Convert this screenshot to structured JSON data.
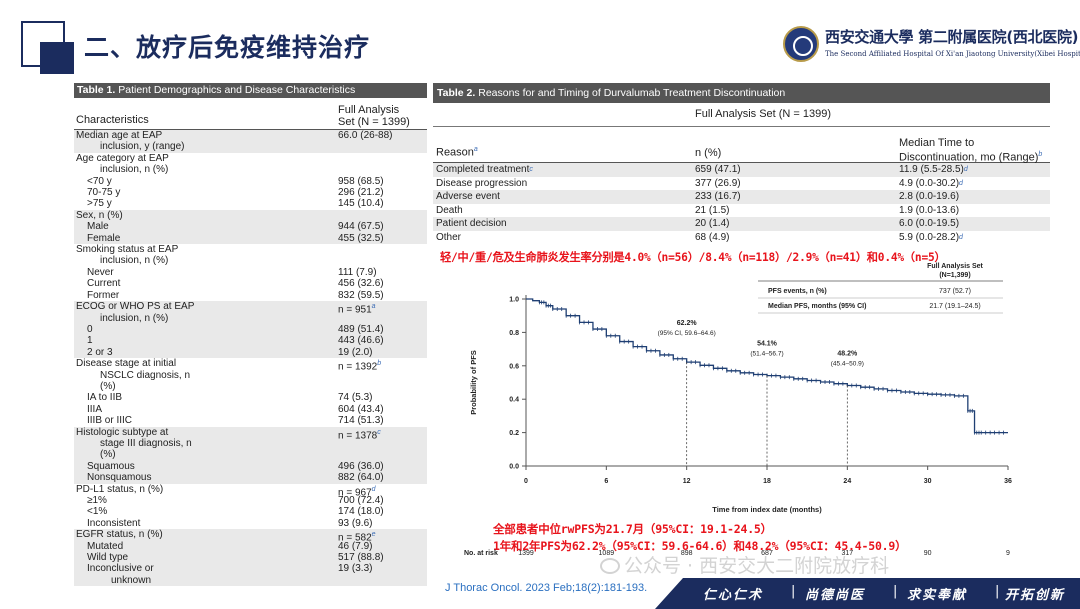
{
  "header": {
    "title": "二、放疗后免疫维持治疗",
    "logo_cn": "西安交通大學 第二附属医院(西北医院)",
    "logo_en": "The Second Affiliated Hospital Of Xi'an Jiaotong University(Xibei Hospital)",
    "accent_color": "#1b2c5e"
  },
  "table1": {
    "title_bold": "Table 1.",
    "title_rest": " Patient Demographics and Disease Characteristics",
    "col1": "Characteristics",
    "col2_line1": "Full Analysis",
    "col2_line2": "Set (N = 1399)",
    "rows": [
      {
        "l1": "Median age at EAP",
        "l2": "inclusion, y (range)",
        "v": "66.0 (26-88)",
        "shade": true
      },
      {
        "l1": "Age category at EAP",
        "l2": "inclusion, n (%)",
        "v": "",
        "shade": false
      },
      {
        "l1": "<70 y",
        "v": "958 (68.5)",
        "ind": 1
      },
      {
        "l1": "70-75 y",
        "v": "296 (21.2)",
        "ind": 1
      },
      {
        "l1": ">75 y",
        "v": "145 (10.4)",
        "ind": 1
      },
      {
        "l1": "Sex, n (%)",
        "v": "",
        "shade": true
      },
      {
        "l1": "Male",
        "v": "944 (67.5)",
        "ind": 1,
        "shade": true
      },
      {
        "l1": "Female",
        "v": "455 (32.5)",
        "ind": 1,
        "shade": true
      },
      {
        "l1": "Smoking status at EAP",
        "l2": "inclusion, n (%)",
        "v": ""
      },
      {
        "l1": "Never",
        "v": "111 (7.9)",
        "ind": 1
      },
      {
        "l1": "Current",
        "v": "456 (32.6)",
        "ind": 1
      },
      {
        "l1": "Former",
        "v": "832 (59.5)",
        "ind": 1
      },
      {
        "l1": "ECOG or WHO PS at EAP",
        "l2": "inclusion, n (%)",
        "v": "n = 951",
        "sup": "a",
        "shade": true
      },
      {
        "l1": "0",
        "v": "489 (51.4)",
        "ind": 1,
        "shade": true
      },
      {
        "l1": "1",
        "v": "443 (46.6)",
        "ind": 1,
        "shade": true
      },
      {
        "l1": "2 or 3",
        "v": "19 (2.0)",
        "ind": 1,
        "shade": true
      },
      {
        "l1": "Disease stage at initial",
        "l2": "NSCLC diagnosis, n",
        "l3": "(%)",
        "v": "n = 1392",
        "sup": "b"
      },
      {
        "l1": "IA to IIB",
        "v": "74 (5.3)",
        "ind": 1
      },
      {
        "l1": "IIIA",
        "v": "604 (43.4)",
        "ind": 1
      },
      {
        "l1": "IIIB or IIIC",
        "v": "714 (51.3)",
        "ind": 1
      },
      {
        "l1": "Histologic subtype at",
        "l2": "stage III diagnosis, n",
        "l3": "(%)",
        "v": "n = 1378",
        "sup": "c",
        "shade": true
      },
      {
        "l1": "Squamous",
        "v": "496 (36.0)",
        "ind": 1,
        "shade": true
      },
      {
        "l1": "Nonsquamous",
        "v": "882 (64.0)",
        "ind": 1,
        "shade": true
      },
      {
        "l1": "PD-L1 status, n (%)",
        "v": "n = 967",
        "sup": "d"
      },
      {
        "l1": "≥1%",
        "v": "700 (72.4)",
        "ind": 1
      },
      {
        "l1": "<1%",
        "v": "174 (18.0)",
        "ind": 1
      },
      {
        "l1": "Inconsistent",
        "v": "93 (9.6)",
        "ind": 1
      },
      {
        "l1": "EGFR status, n (%)",
        "v": "n = 582",
        "sup": "e",
        "shade": true
      },
      {
        "l1": "Mutated",
        "v": "46 (7.9)",
        "ind": 1,
        "shade": true
      },
      {
        "l1": "Wild type",
        "v": "517 (88.8)",
        "ind": 1,
        "shade": true
      },
      {
        "l1": "Inconclusive or",
        "l2": "unknown",
        "v": "19 (3.3)",
        "ind": 1,
        "shade": true
      }
    ]
  },
  "table2": {
    "title_bold": "Table 2.",
    "title_rest": " Reasons for and Timing of Durvalumab Treatment Discontinuation",
    "top_head": "Full Analysis Set (N = 1399)",
    "col_reason": "Reason",
    "col_reason_sup": "a",
    "col_n": "n (%)",
    "col_time_1": "Median Time to",
    "col_time_2": "Discontinuation, mo (Range)",
    "col_time_sup": "b",
    "rows": [
      {
        "reason": "Completed treatment",
        "rsup": "c",
        "n": "659 (47.1)",
        "time": "11.9 (5.5-28.5)",
        "tsup": "d",
        "shade": true
      },
      {
        "reason": "Disease progression",
        "n": "377 (26.9)",
        "time": "4.9 (0.0-30.2)",
        "tsup": "d"
      },
      {
        "reason": "Adverse event",
        "n": "233 (16.7)",
        "time": "2.8 (0.0-19.6)",
        "shade": true
      },
      {
        "reason": "Death",
        "n": "21 (1.5)",
        "time": "1.9 (0.0-13.6)"
      },
      {
        "reason": "Patient decision",
        "n": "20 (1.4)",
        "time": "6.0 (0.0-19.5)",
        "shade": true
      },
      {
        "reason": "Other",
        "n": "68 (4.9)",
        "time": "5.9 (0.0-28.2)",
        "tsup": "d"
      }
    ]
  },
  "notes": {
    "pneumonitis": "轻/中/重/危及生命肺炎发生率分别是4.0%（n=56）/8.4%（n=118）/2.9%（n=41）和0.4%（n=5）",
    "median_pfs": "全部患者中位rwPFS为21.7月（95%CI：19.1-24.5）",
    "pfs_rates": "1年和2年PFS为62.2%（95%CI：59.6-64.6）和48.2%（95%CI：45.4-50.9）",
    "color": "#e8141c"
  },
  "chart_data": {
    "type": "line",
    "title": "",
    "xlabel": "Time from index date (months)",
    "ylabel": "Probability of PFS",
    "xlim": [
      0,
      36
    ],
    "ylim": [
      0,
      1.0
    ],
    "x_ticks": [
      0,
      6,
      12,
      18,
      24,
      30,
      36
    ],
    "y_ticks": [
      "0.0",
      "0.2",
      "0.4",
      "0.6",
      "0.8",
      "1.0"
    ],
    "series": [
      {
        "x": [
          0,
          0.5,
          1,
          1.5,
          2,
          3,
          4,
          5,
          6,
          7,
          8,
          9,
          10,
          11,
          12,
          13,
          14,
          15,
          16,
          17,
          18,
          19,
          20,
          21,
          22,
          23,
          24,
          25,
          26,
          27,
          28,
          29,
          30,
          31,
          32,
          33,
          33.5,
          34,
          35,
          36
        ],
        "y": [
          1.0,
          0.99,
          0.98,
          0.96,
          0.94,
          0.9,
          0.86,
          0.82,
          0.78,
          0.745,
          0.715,
          0.69,
          0.665,
          0.642,
          0.622,
          0.603,
          0.585,
          0.57,
          0.558,
          0.548,
          0.541,
          0.532,
          0.522,
          0.512,
          0.503,
          0.493,
          0.482,
          0.472,
          0.462,
          0.452,
          0.443,
          0.435,
          0.43,
          0.426,
          0.42,
          0.33,
          0.2,
          0.2,
          0.2,
          0.2
        ]
      }
    ],
    "annotations": [
      {
        "x": 12,
        "y": 0.622,
        "label": "62.2%",
        "ci": "(95% CI, 59.6–64.6)"
      },
      {
        "x": 18,
        "y": 0.541,
        "label": "54.1%",
        "ci": "(51.4–56.7)"
      },
      {
        "x": 24,
        "y": 0.482,
        "label": "48.2%",
        "ci": "(45.4–50.9)"
      }
    ],
    "inset": {
      "header_1": "Full Analysis Set",
      "header_2": "(N=1,399)",
      "rows": [
        {
          "label": "PFS events, n (%)",
          "value": "737 (52.7)"
        },
        {
          "label": "Median PFS, months (95% CI)",
          "value": "21.7 (19.1–24.5)"
        }
      ]
    },
    "at_risk_label": "No. at risk",
    "at_risk": [
      "1399",
      "1089",
      "898",
      "687",
      "317",
      "90",
      "9"
    ],
    "line_color": "#1f3f73"
  },
  "citation": "J Thorac Oncol. 2023 Feb;18(2):181-193.",
  "watermark": "公众号 · 西安交大二附院放疗科",
  "footer": {
    "mottos": [
      "仁心仁术",
      "尚德尚医",
      "求实奉献",
      "开拓创新"
    ],
    "separator": "|",
    "bg_color": "#1b2c5e"
  }
}
